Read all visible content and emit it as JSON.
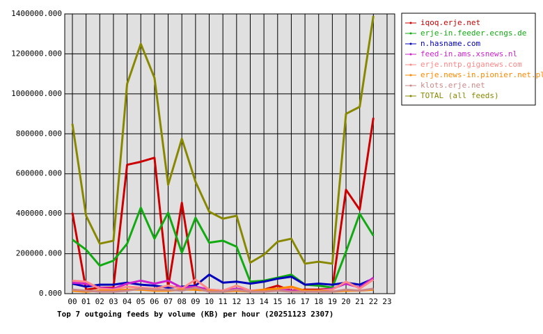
{
  "chart_data": {
    "type": "line",
    "title": "Top 7 outgoing feeds by volume (KB) per hour (20251123 2307)",
    "categories": [
      "00",
      "01",
      "02",
      "03",
      "04",
      "05",
      "06",
      "07",
      "08",
      "09",
      "10",
      "11",
      "12",
      "13",
      "14",
      "15",
      "16",
      "17",
      "18",
      "19",
      "20",
      "21",
      "22",
      "23"
    ],
    "ylim": [
      0,
      1400000
    ],
    "yticks": [
      {
        "value": 0,
        "label": "0.000"
      },
      {
        "value": 200000,
        "label": "200000.000"
      },
      {
        "value": 400000,
        "label": "400000.000"
      },
      {
        "value": 600000,
        "label": "600000.000"
      },
      {
        "value": 800000,
        "label": "800000.000"
      },
      {
        "value": 1000000,
        "label": "1000000.000"
      },
      {
        "value": 1200000,
        "label": "1200000.000"
      },
      {
        "value": 1400000,
        "label": "1400000.000"
      }
    ],
    "grid": true,
    "series": [
      {
        "name": "iqoq.erje.net",
        "color": "#cc0000",
        "values": [
          405000,
          20000,
          30000,
          30000,
          645000,
          660000,
          680000,
          30000,
          455000,
          20000,
          15000,
          15000,
          20000,
          10000,
          20000,
          40000,
          15000,
          20000,
          20000,
          25000,
          520000,
          420000,
          880000,
          null
        ]
      },
      {
        "name": "erje-in.feeder.ecngs.de",
        "color": "#11aa11",
        "values": [
          270000,
          220000,
          140000,
          165000,
          250000,
          430000,
          275000,
          405000,
          205000,
          380000,
          255000,
          265000,
          235000,
          60000,
          65000,
          80000,
          95000,
          45000,
          40000,
          30000,
          210000,
          400000,
          290000,
          null
        ]
      },
      {
        "name": "n.hasname.com",
        "color": "#0000bb",
        "values": [
          50000,
          35000,
          45000,
          45000,
          55000,
          45000,
          40000,
          30000,
          35000,
          40000,
          95000,
          55000,
          60000,
          50000,
          60000,
          75000,
          85000,
          45000,
          50000,
          45000,
          55000,
          45000,
          75000,
          null
        ]
      },
      {
        "name": "feed-in.ams.xsnews.nl",
        "color": "#cc22cc",
        "values": [
          55000,
          50000,
          30000,
          25000,
          50000,
          65000,
          50000,
          65000,
          30000,
          35000,
          20000,
          15000,
          25000,
          15000,
          15000,
          20000,
          15000,
          10000,
          15000,
          25000,
          50000,
          30000,
          80000,
          null
        ]
      },
      {
        "name": "erje.nntp.giganews.com",
        "color": "#ff8888",
        "values": [
          65000,
          60000,
          25000,
          20000,
          35000,
          30000,
          25000,
          40000,
          25000,
          70000,
          20000,
          15000,
          40000,
          15000,
          20000,
          25000,
          30000,
          15000,
          15000,
          20000,
          60000,
          25000,
          70000,
          null
        ]
      },
      {
        "name": "erje.news-in.pionier.net.pl",
        "color": "#ff8800",
        "values": [
          15000,
          10000,
          15000,
          15000,
          20000,
          20000,
          15000,
          15000,
          20000,
          20000,
          15000,
          10000,
          15000,
          10000,
          20000,
          25000,
          35000,
          15000,
          15000,
          10000,
          15000,
          15000,
          20000,
          null
        ]
      },
      {
        "name": "klots.erje.net",
        "color": "#cc8888",
        "values": [
          20000,
          15000,
          10000,
          10000,
          15000,
          25000,
          20000,
          20000,
          15000,
          30000,
          10000,
          10000,
          20000,
          10000,
          10000,
          15000,
          10000,
          10000,
          10000,
          10000,
          20000,
          15000,
          25000,
          null
        ]
      },
      {
        "name": "TOTAL (all feeds)",
        "color": "#888800",
        "values": [
          850000,
          390000,
          250000,
          265000,
          1050000,
          1250000,
          1080000,
          545000,
          775000,
          560000,
          410000,
          375000,
          390000,
          155000,
          195000,
          260000,
          275000,
          150000,
          160000,
          150000,
          900000,
          935000,
          1390000,
          null
        ]
      }
    ]
  }
}
